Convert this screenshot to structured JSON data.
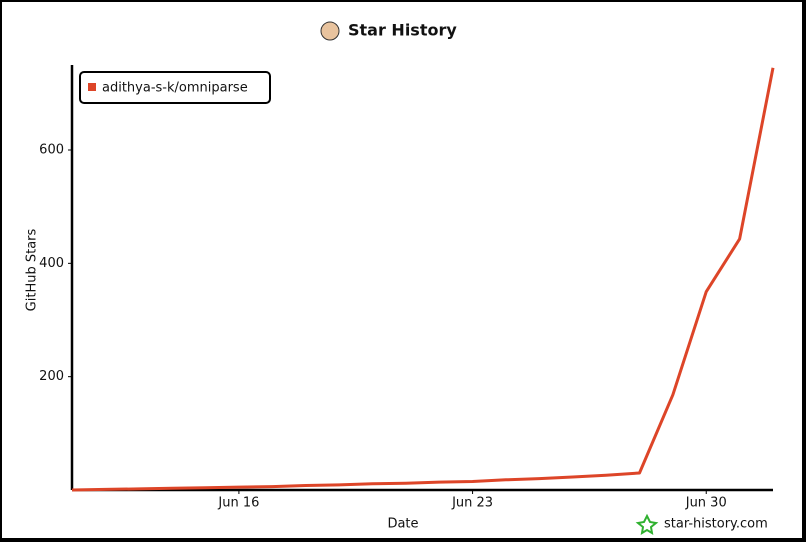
{
  "chart_data": {
    "type": "line",
    "title": "Star History",
    "x_label": "Date",
    "y_label": "GitHub Stars",
    "watermark": "star-history.com",
    "x": [
      "Jun 11",
      "Jun 12",
      "Jun 13",
      "Jun 14",
      "Jun 15",
      "Jun 16",
      "Jun 17",
      "Jun 18",
      "Jun 19",
      "Jun 20",
      "Jun 21",
      "Jun 22",
      "Jun 23",
      "Jun 24",
      "Jun 25",
      "Jun 26",
      "Jun 27",
      "Jun 28",
      "Jun 29",
      "Jun 30",
      "Jul 1",
      "Jul 2"
    ],
    "series": [
      {
        "name": "adithya-s-k/omniparse",
        "color": "#dd4528",
        "values": [
          0,
          1,
          2,
          3,
          4,
          5,
          6,
          8,
          9,
          11,
          12,
          14,
          15,
          18,
          20,
          23,
          26,
          30,
          168,
          350,
          443,
          745
        ]
      }
    ],
    "xlim": [
      "Jun 11",
      "Jul 2"
    ],
    "xticks": [
      "Jun 16",
      "Jun 23",
      "Jun 30"
    ],
    "ylim": [
      0,
      750
    ],
    "yticks": [
      200,
      400,
      600
    ],
    "grid": false,
    "legend": "top-left"
  }
}
